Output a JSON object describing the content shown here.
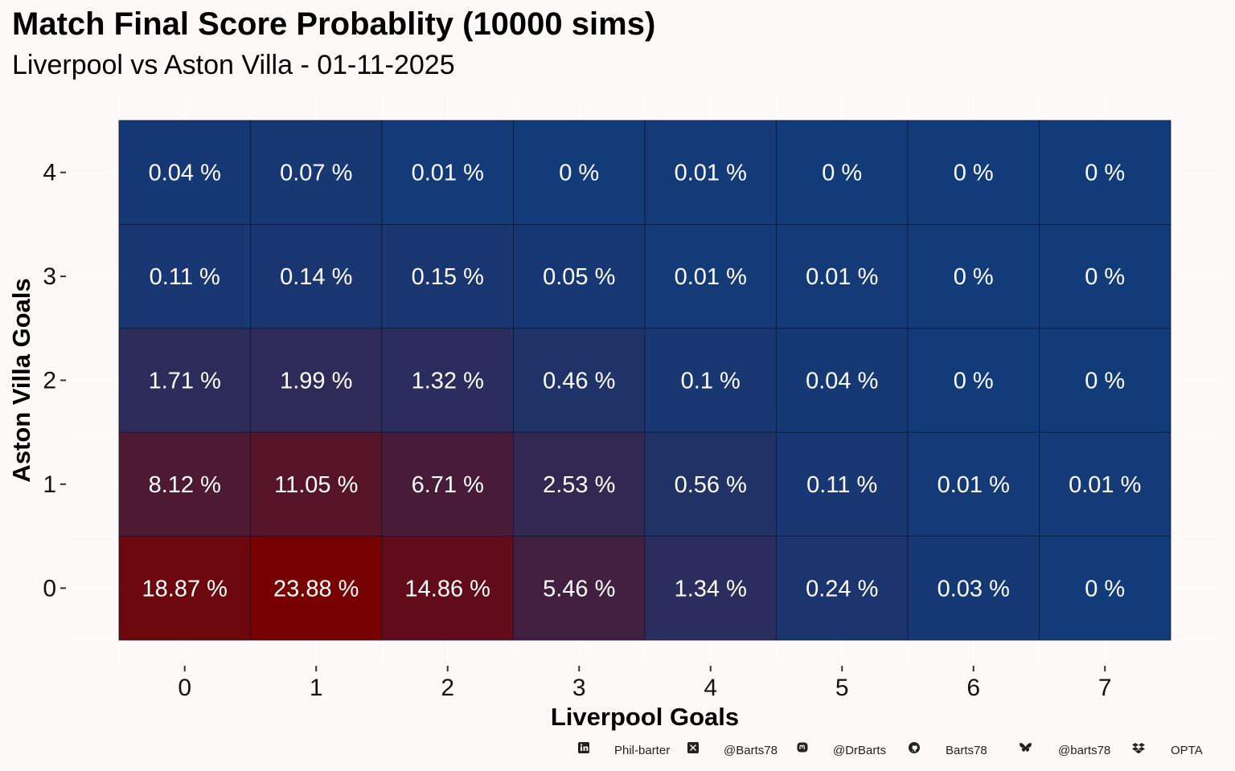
{
  "title": "Match Final Score Probablity (10000 sims)",
  "subtitle": "Liverpool vs Aston Villa - 01-11-2025",
  "footer": {
    "linkedin": "Phil-barter",
    "x": "@Barts78",
    "mastodon": "@DrBarts",
    "github": "Barts78",
    "bluesky": "@barts78",
    "data_source": "OPTA"
  },
  "colors": {
    "low": "#123b7a",
    "high": "#770000",
    "background": "#fdf9f8"
  },
  "chart_data": {
    "type": "heatmap",
    "xlabel": "Liverpool Goals",
    "ylabel": "Aston Villa Goals",
    "x": [
      0,
      1,
      2,
      3,
      4,
      5,
      6,
      7
    ],
    "y": [
      0,
      1,
      2,
      3,
      4
    ],
    "values": [
      [
        18.87,
        23.88,
        14.86,
        5.46,
        1.34,
        0.24,
        0.03,
        0
      ],
      [
        8.12,
        11.05,
        6.71,
        2.53,
        0.56,
        0.11,
        0.01,
        0.01
      ],
      [
        1.71,
        1.99,
        1.32,
        0.46,
        0.1,
        0.04,
        0,
        0
      ],
      [
        0.11,
        0.14,
        0.15,
        0.05,
        0.01,
        0.01,
        0,
        0
      ],
      [
        0.04,
        0.07,
        0.01,
        0,
        0.01,
        0,
        0,
        0
      ]
    ],
    "value_suffix": " %",
    "grid": true,
    "legend": "none"
  }
}
